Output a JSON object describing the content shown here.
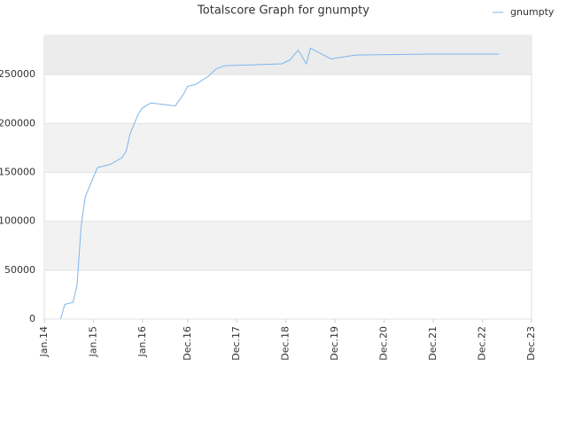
{
  "chart_data": {
    "type": "line",
    "title": "Totalscore Graph for gnumpty",
    "x": [
      "2014-05",
      "2014-06",
      "2014-08",
      "2014-09",
      "2014-10",
      "2014-11",
      "2014-12",
      "2015-01",
      "2015-02",
      "2015-05",
      "2015-08",
      "2015-09",
      "2015-10",
      "2015-12",
      "2016-01",
      "2016-03",
      "2016-09",
      "2016-11",
      "2016-12",
      "2017-02",
      "2017-05",
      "2017-07",
      "2017-09",
      "2018-04",
      "2018-11",
      "2019-01",
      "2019-03",
      "2019-05",
      "2019-06",
      "2019-11",
      "2020-05",
      "2021-11",
      "2023-04"
    ],
    "series": [
      {
        "name": "gnumpty",
        "color": "#7cb5ec",
        "values": [
          0,
          15000,
          17000,
          35000,
          95000,
          125000,
          135000,
          145000,
          155000,
          158000,
          165000,
          172000,
          190000,
          210000,
          216000,
          221000,
          218000,
          230000,
          238000,
          240000,
          248000,
          256000,
          259000,
          260000,
          261000,
          265000,
          275000,
          261000,
          277000,
          266000,
          270000,
          271000,
          271000
        ]
      }
    ],
    "xlim": [
      "2014-01",
      "2023-12"
    ],
    "xticks": [
      {
        "value": "2014-01",
        "label": "Jan.14"
      },
      {
        "value": "2015-01",
        "label": "Jan.15"
      },
      {
        "value": "2016-01",
        "label": "Jan.16"
      },
      {
        "value": "2016-12",
        "label": "Dec.16"
      },
      {
        "value": "2017-12",
        "label": "Dec.17"
      },
      {
        "value": "2018-12",
        "label": "Dec.18"
      },
      {
        "value": "2019-12",
        "label": "Dec.19"
      },
      {
        "value": "2020-12",
        "label": "Dec.20"
      },
      {
        "value": "2021-12",
        "label": "Dec.21"
      },
      {
        "value": "2022-12",
        "label": "Dec.22"
      },
      {
        "value": "2023-12",
        "label": "Dec.23"
      }
    ],
    "ylim": [
      0,
      290000
    ],
    "yticks": [
      0,
      50000,
      100000,
      150000,
      200000,
      250000
    ],
    "grid": true,
    "legend": "top-right"
  }
}
